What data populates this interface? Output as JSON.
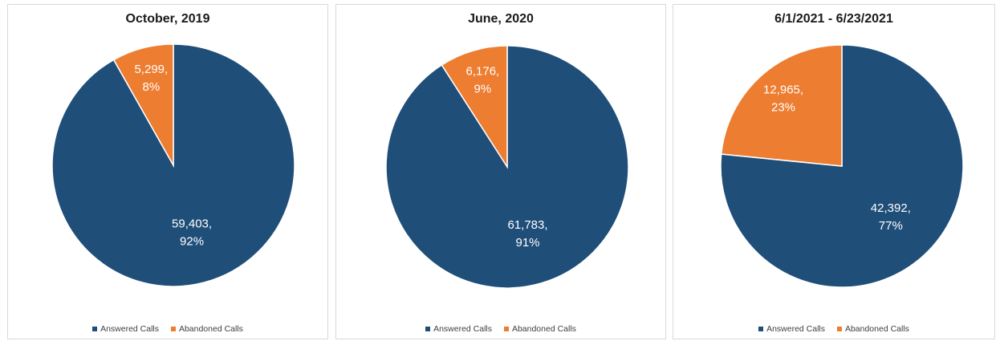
{
  "colors": {
    "answered": "#1f4e79",
    "abandoned": "#ed7d31",
    "label": "#ffffff"
  },
  "chart_data": [
    {
      "type": "pie",
      "title": "October, 2019",
      "categories": [
        "Answered Calls",
        "Abandoned Calls"
      ],
      "values": [
        59403,
        5299
      ],
      "data_labels": [
        [
          "59,403,",
          "92%"
        ],
        [
          "5,299,",
          "8%"
        ]
      ],
      "legend_position": "bottom"
    },
    {
      "type": "pie",
      "title": "June, 2020",
      "categories": [
        "Answered Calls",
        "Abandoned Calls"
      ],
      "values": [
        61783,
        6176
      ],
      "data_labels": [
        [
          "61,783,",
          "91%"
        ],
        [
          "6,176,",
          "9%"
        ]
      ],
      "legend_position": "bottom"
    },
    {
      "type": "pie",
      "title": "6/1/2021 - 6/23/2021",
      "categories": [
        "Answered Calls",
        "Abandoned Calls"
      ],
      "values": [
        42392,
        12965
      ],
      "data_labels": [
        [
          "42,392,",
          "77%"
        ],
        [
          "12,965,",
          "23%"
        ]
      ],
      "legend_position": "bottom"
    }
  ]
}
